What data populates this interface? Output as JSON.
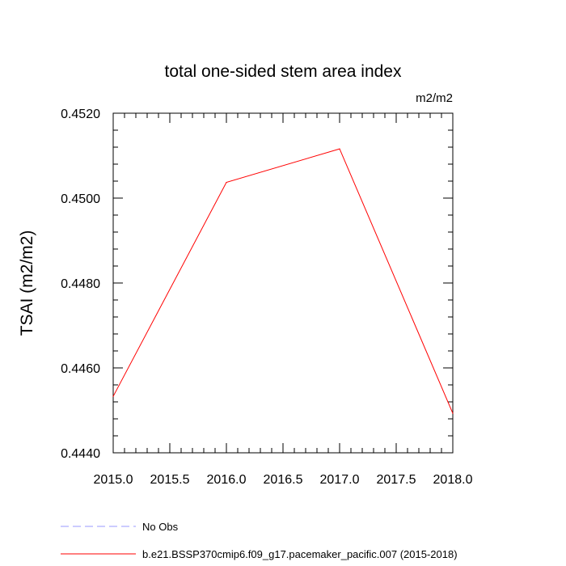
{
  "chart_data": {
    "type": "line",
    "title": "total one-sided stem area index",
    "units": "m2/m2",
    "ylabel": "TSAI  (m2/m2)",
    "xlabel": "",
    "xlim": [
      2015.0,
      2018.0
    ],
    "ylim": [
      0.444,
      0.452
    ],
    "x_ticks": [
      "2015.0",
      "2015.5",
      "2016.0",
      "2016.5",
      "2017.0",
      "2017.5",
      "2018.0"
    ],
    "y_ticks": [
      "0.4440",
      "0.4460",
      "0.4480",
      "0.4500",
      "0.4520"
    ],
    "grid": false,
    "series": [
      {
        "name": "b.e21.BSSP370cmip6.f09_g17.pacemaker_pacific.007 (2015-2018)",
        "color": "#ff0000",
        "x": [
          2015,
          2016,
          2017,
          2018
        ],
        "y": [
          0.44533,
          0.45037,
          0.45116,
          0.44493
        ]
      }
    ],
    "legend": [
      {
        "label": "No Obs",
        "color": "#9a9aff",
        "style": "dashed"
      },
      {
        "label": "b.e21.BSSP370cmip6.f09_g17.pacemaker_pacific.007 (2015-2018)",
        "color": "#ff0000",
        "style": "solid"
      }
    ],
    "legend_position": "bottom"
  }
}
